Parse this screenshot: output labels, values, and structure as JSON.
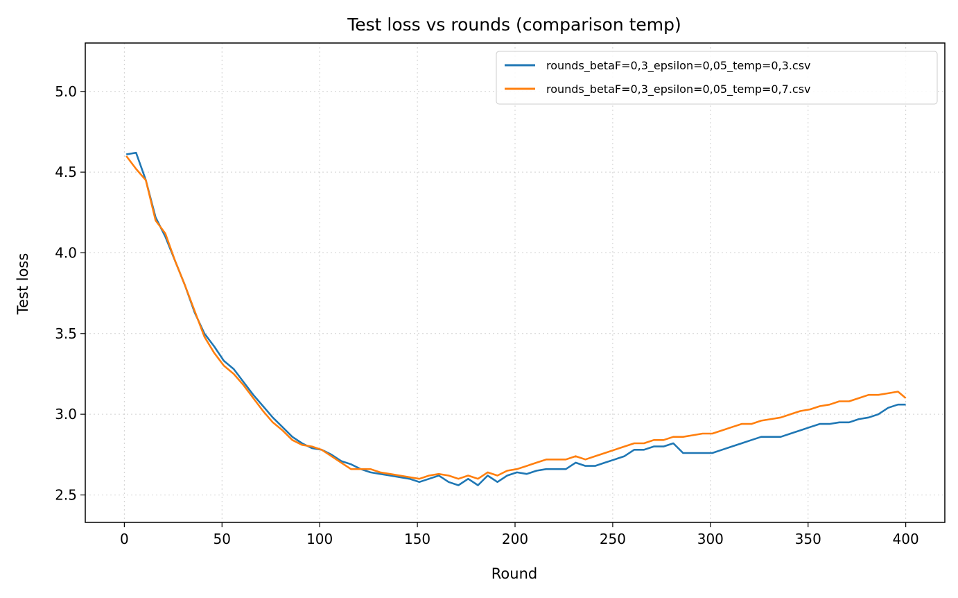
{
  "chart_data": {
    "type": "line",
    "title": "Test loss vs rounds (comparison temp)",
    "xlabel": "Round",
    "ylabel": "Test loss",
    "xlim": [
      -20,
      420
    ],
    "ylim": [
      2.33,
      5.3
    ],
    "xticks": [
      0,
      50,
      100,
      150,
      200,
      250,
      300,
      350,
      400
    ],
    "yticks": [
      2.5,
      3.0,
      3.5,
      4.0,
      4.5,
      5.0
    ],
    "grid": true,
    "legend_position": "top-right",
    "x_start": 1,
    "x_step": 5,
    "series": [
      {
        "name": "rounds_betaF=0,3_epsilon=0,05_temp=0,3.csv",
        "color": "#1f77b4",
        "values": [
          4.61,
          4.62,
          4.45,
          4.22,
          4.1,
          3.95,
          3.8,
          3.63,
          3.5,
          3.42,
          3.33,
          3.28,
          3.2,
          3.12,
          3.05,
          2.98,
          2.92,
          2.86,
          2.82,
          2.79,
          2.78,
          2.75,
          2.71,
          2.69,
          2.66,
          2.64,
          2.63,
          2.62,
          2.61,
          2.6,
          2.58,
          2.6,
          2.62,
          2.58,
          2.56,
          2.6,
          2.56,
          2.62,
          2.58,
          2.62,
          2.64,
          2.63,
          2.65,
          2.66,
          2.66,
          2.66,
          2.7,
          2.68,
          2.68,
          2.7,
          2.72,
          2.74,
          2.78,
          2.78,
          2.8,
          2.8,
          2.82,
          2.76,
          2.76,
          2.76,
          2.76,
          2.78,
          2.8,
          2.82,
          2.84,
          2.86,
          2.86,
          2.86,
          2.88,
          2.9,
          2.92,
          2.94,
          2.94,
          2.95,
          2.95,
          2.97,
          2.98,
          3.0,
          3.04,
          3.06,
          3.06
        ]
      },
      {
        "name": "rounds_betaF=0,3_epsilon=0,05_temp=0,7.csv",
        "color": "#ff7f0e",
        "values": [
          4.6,
          4.52,
          4.45,
          4.2,
          4.12,
          3.95,
          3.8,
          3.64,
          3.48,
          3.38,
          3.3,
          3.25,
          3.18,
          3.1,
          3.02,
          2.95,
          2.9,
          2.84,
          2.81,
          2.8,
          2.78,
          2.74,
          2.7,
          2.66,
          2.66,
          2.66,
          2.64,
          2.63,
          2.62,
          2.61,
          2.6,
          2.62,
          2.63,
          2.62,
          2.6,
          2.62,
          2.6,
          2.64,
          2.62,
          2.65,
          2.66,
          2.68,
          2.7,
          2.72,
          2.72,
          2.72,
          2.74,
          2.72,
          2.74,
          2.76,
          2.78,
          2.8,
          2.82,
          2.82,
          2.84,
          2.84,
          2.86,
          2.86,
          2.87,
          2.88,
          2.88,
          2.9,
          2.92,
          2.94,
          2.94,
          2.96,
          2.97,
          2.98,
          3.0,
          3.02,
          3.03,
          3.05,
          3.06,
          3.08,
          3.08,
          3.1,
          3.12,
          3.12,
          3.13,
          3.14,
          3.1
        ]
      }
    ]
  }
}
